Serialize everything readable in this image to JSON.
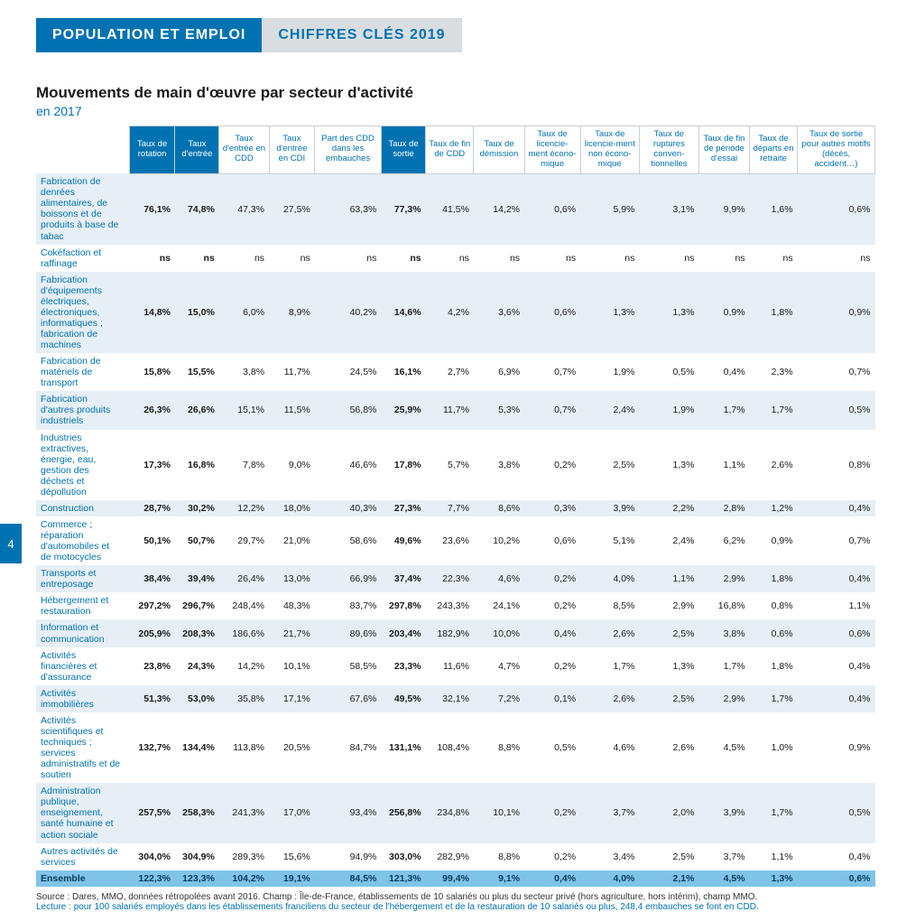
{
  "header": {
    "left": "POPULATION ET EMPLOI",
    "right": "CHIFFRES CLÉS 2019"
  },
  "title": "Mouvements de main d'œuvre par secteur d'activité",
  "subtitle": "en 2017",
  "page_number": "4",
  "columns": [
    {
      "label": "Taux de rotation",
      "hi": true
    },
    {
      "label": "Taux d'entrée",
      "hi": true
    },
    {
      "label": "Taux d'entrée en CDD",
      "hi": false
    },
    {
      "label": "Taux d'entrée en CDI",
      "hi": false
    },
    {
      "label": "Part des CDD dans les embauches",
      "hi": false
    },
    {
      "label": "Taux de sortie",
      "hi": true
    },
    {
      "label": "Taux de fin de CDD",
      "hi": false
    },
    {
      "label": "Taux de démission",
      "hi": false
    },
    {
      "label": "Taux de licencie-ment écono-mique",
      "hi": false
    },
    {
      "label": "Taux de licencie-ment non écono-mique",
      "hi": false
    },
    {
      "label": "Taux de ruptures conven-tionnelles",
      "hi": false
    },
    {
      "label": "Taux de fin de période d'essai",
      "hi": false
    },
    {
      "label": "Taux de départs en retraite",
      "hi": false
    },
    {
      "label": "Taux de sortie pour autres motifs (décès, accident…)",
      "hi": false
    }
  ],
  "bold_cols": [
    0,
    1,
    5
  ],
  "rows": [
    {
      "label": "Fabrication de denrées alimentaires, de boissons et de produits à base de tabac",
      "v": [
        "76,1%",
        "74,8%",
        "47,3%",
        "27,5%",
        "63,3%",
        "77,3%",
        "41,5%",
        "14,2%",
        "0,6%",
        "5,9%",
        "3,1%",
        "9,9%",
        "1,6%",
        "0,6%"
      ]
    },
    {
      "label": "Cokéfaction et raffinage",
      "v": [
        "ns",
        "ns",
        "ns",
        "ns",
        "ns",
        "ns",
        "ns",
        "ns",
        "ns",
        "ns",
        "ns",
        "ns",
        "ns",
        "ns"
      ]
    },
    {
      "label": "Fabrication d'équipements électriques, électroniques, informatiques ; fabrication de machines",
      "v": [
        "14,8%",
        "15,0%",
        "6,0%",
        "8,9%",
        "40,2%",
        "14,6%",
        "4,2%",
        "3,6%",
        "0,6%",
        "1,3%",
        "1,3%",
        "0,9%",
        "1,8%",
        "0,9%"
      ]
    },
    {
      "label": "Fabrication de matériels de transport",
      "v": [
        "15,8%",
        "15,5%",
        "3,8%",
        "11,7%",
        "24,5%",
        "16,1%",
        "2,7%",
        "6,9%",
        "0,7%",
        "1,9%",
        "0,5%",
        "0,4%",
        "2,3%",
        "0,7%"
      ]
    },
    {
      "label": "Fabrication d'autres produits industriels",
      "v": [
        "26,3%",
        "26,6%",
        "15,1%",
        "11,5%",
        "56,8%",
        "25,9%",
        "11,7%",
        "5,3%",
        "0,7%",
        "2,4%",
        "1,9%",
        "1,7%",
        "1,7%",
        "0,5%"
      ]
    },
    {
      "label": "Industries extractives, énergie, eau, gestion des déchets et dépollution",
      "v": [
        "17,3%",
        "16,8%",
        "7,8%",
        "9,0%",
        "46,6%",
        "17,8%",
        "5,7%",
        "3,8%",
        "0,2%",
        "2,5%",
        "1,3%",
        "1,1%",
        "2,6%",
        "0,8%"
      ]
    },
    {
      "label": "Construction",
      "v": [
        "28,7%",
        "30,2%",
        "12,2%",
        "18,0%",
        "40,3%",
        "27,3%",
        "7,7%",
        "8,6%",
        "0,3%",
        "3,9%",
        "2,2%",
        "2,8%",
        "1,2%",
        "0,4%"
      ]
    },
    {
      "label": "Commerce ; réparation d'automobiles et de motocycles",
      "v": [
        "50,1%",
        "50,7%",
        "29,7%",
        "21,0%",
        "58,6%",
        "49,6%",
        "23,6%",
        "10,2%",
        "0,6%",
        "5,1%",
        "2,4%",
        "6,2%",
        "0,9%",
        "0,7%"
      ]
    },
    {
      "label": "Transports et entreposage",
      "v": [
        "38,4%",
        "39,4%",
        "26,4%",
        "13,0%",
        "66,9%",
        "37,4%",
        "22,3%",
        "4,6%",
        "0,2%",
        "4,0%",
        "1,1%",
        "2,9%",
        "1,8%",
        "0,4%"
      ]
    },
    {
      "label": "Hébergement et restauration",
      "v": [
        "297,2%",
        "296,7%",
        "248,4%",
        "48,3%",
        "83,7%",
        "297,8%",
        "243,3%",
        "24,1%",
        "0,2%",
        "8,5%",
        "2,9%",
        "16,8%",
        "0,8%",
        "1,1%"
      ]
    },
    {
      "label": "Information et communication",
      "v": [
        "205,9%",
        "208,3%",
        "186,6%",
        "21,7%",
        "89,6%",
        "203,4%",
        "182,9%",
        "10,0%",
        "0,4%",
        "2,6%",
        "2,5%",
        "3,8%",
        "0,6%",
        "0,6%"
      ]
    },
    {
      "label": "Activités financières et d'assurance",
      "v": [
        "23,8%",
        "24,3%",
        "14,2%",
        "10,1%",
        "58,5%",
        "23,3%",
        "11,6%",
        "4,7%",
        "0,2%",
        "1,7%",
        "1,3%",
        "1,7%",
        "1,8%",
        "0,4%"
      ]
    },
    {
      "label": "Activités immobilières",
      "v": [
        "51,3%",
        "53,0%",
        "35,8%",
        "17,1%",
        "67,6%",
        "49,5%",
        "32,1%",
        "7,2%",
        "0,1%",
        "2,6%",
        "2,5%",
        "2,9%",
        "1,7%",
        "0,4%"
      ]
    },
    {
      "label": "Activités scientifiques et techniques ; services administratifs et de soutien",
      "v": [
        "132,7%",
        "134,4%",
        "113,8%",
        "20,5%",
        "84,7%",
        "131,1%",
        "108,4%",
        "8,8%",
        "0,5%",
        "4,6%",
        "2,6%",
        "4,5%",
        "1,0%",
        "0,9%"
      ]
    },
    {
      "label": "Administration publique, enseignement, santé humaine et action sociale",
      "v": [
        "257,5%",
        "258,3%",
        "241,3%",
        "17,0%",
        "93,4%",
        "256,8%",
        "234,8%",
        "10,1%",
        "0,2%",
        "3,7%",
        "2,0%",
        "3,9%",
        "1,7%",
        "0,5%"
      ]
    },
    {
      "label": "Autres activités de services",
      "v": [
        "304,0%",
        "304,9%",
        "289,3%",
        "15,6%",
        "94,9%",
        "303,0%",
        "282,9%",
        "8,8%",
        "0,2%",
        "3,4%",
        "2,5%",
        "3,7%",
        "1,1%",
        "0,4%"
      ]
    },
    {
      "label": "Ensemble",
      "v": [
        "122,3%",
        "123,3%",
        "104,2%",
        "19,1%",
        "84,5%",
        "121,3%",
        "99,4%",
        "9,1%",
        "0,4%",
        "4,0%",
        "2,1%",
        "4,5%",
        "1,3%",
        "0,6%"
      ],
      "total": true
    }
  ],
  "footnote_source": "Source : Dares, MMO, données rétropolées avant 2016.    Champ : Île-de-France, établissements de 10 salariés ou plus du secteur privé (hors agriculture, hors intérim), champ MMO.",
  "footnote_lecture": "Lecture : pour 100 salariés employés dans les établissements franciliens du secteur de l'hébergement et de la restauration de 10 salariés ou plus, 248,4 embauches se font en CDD."
}
